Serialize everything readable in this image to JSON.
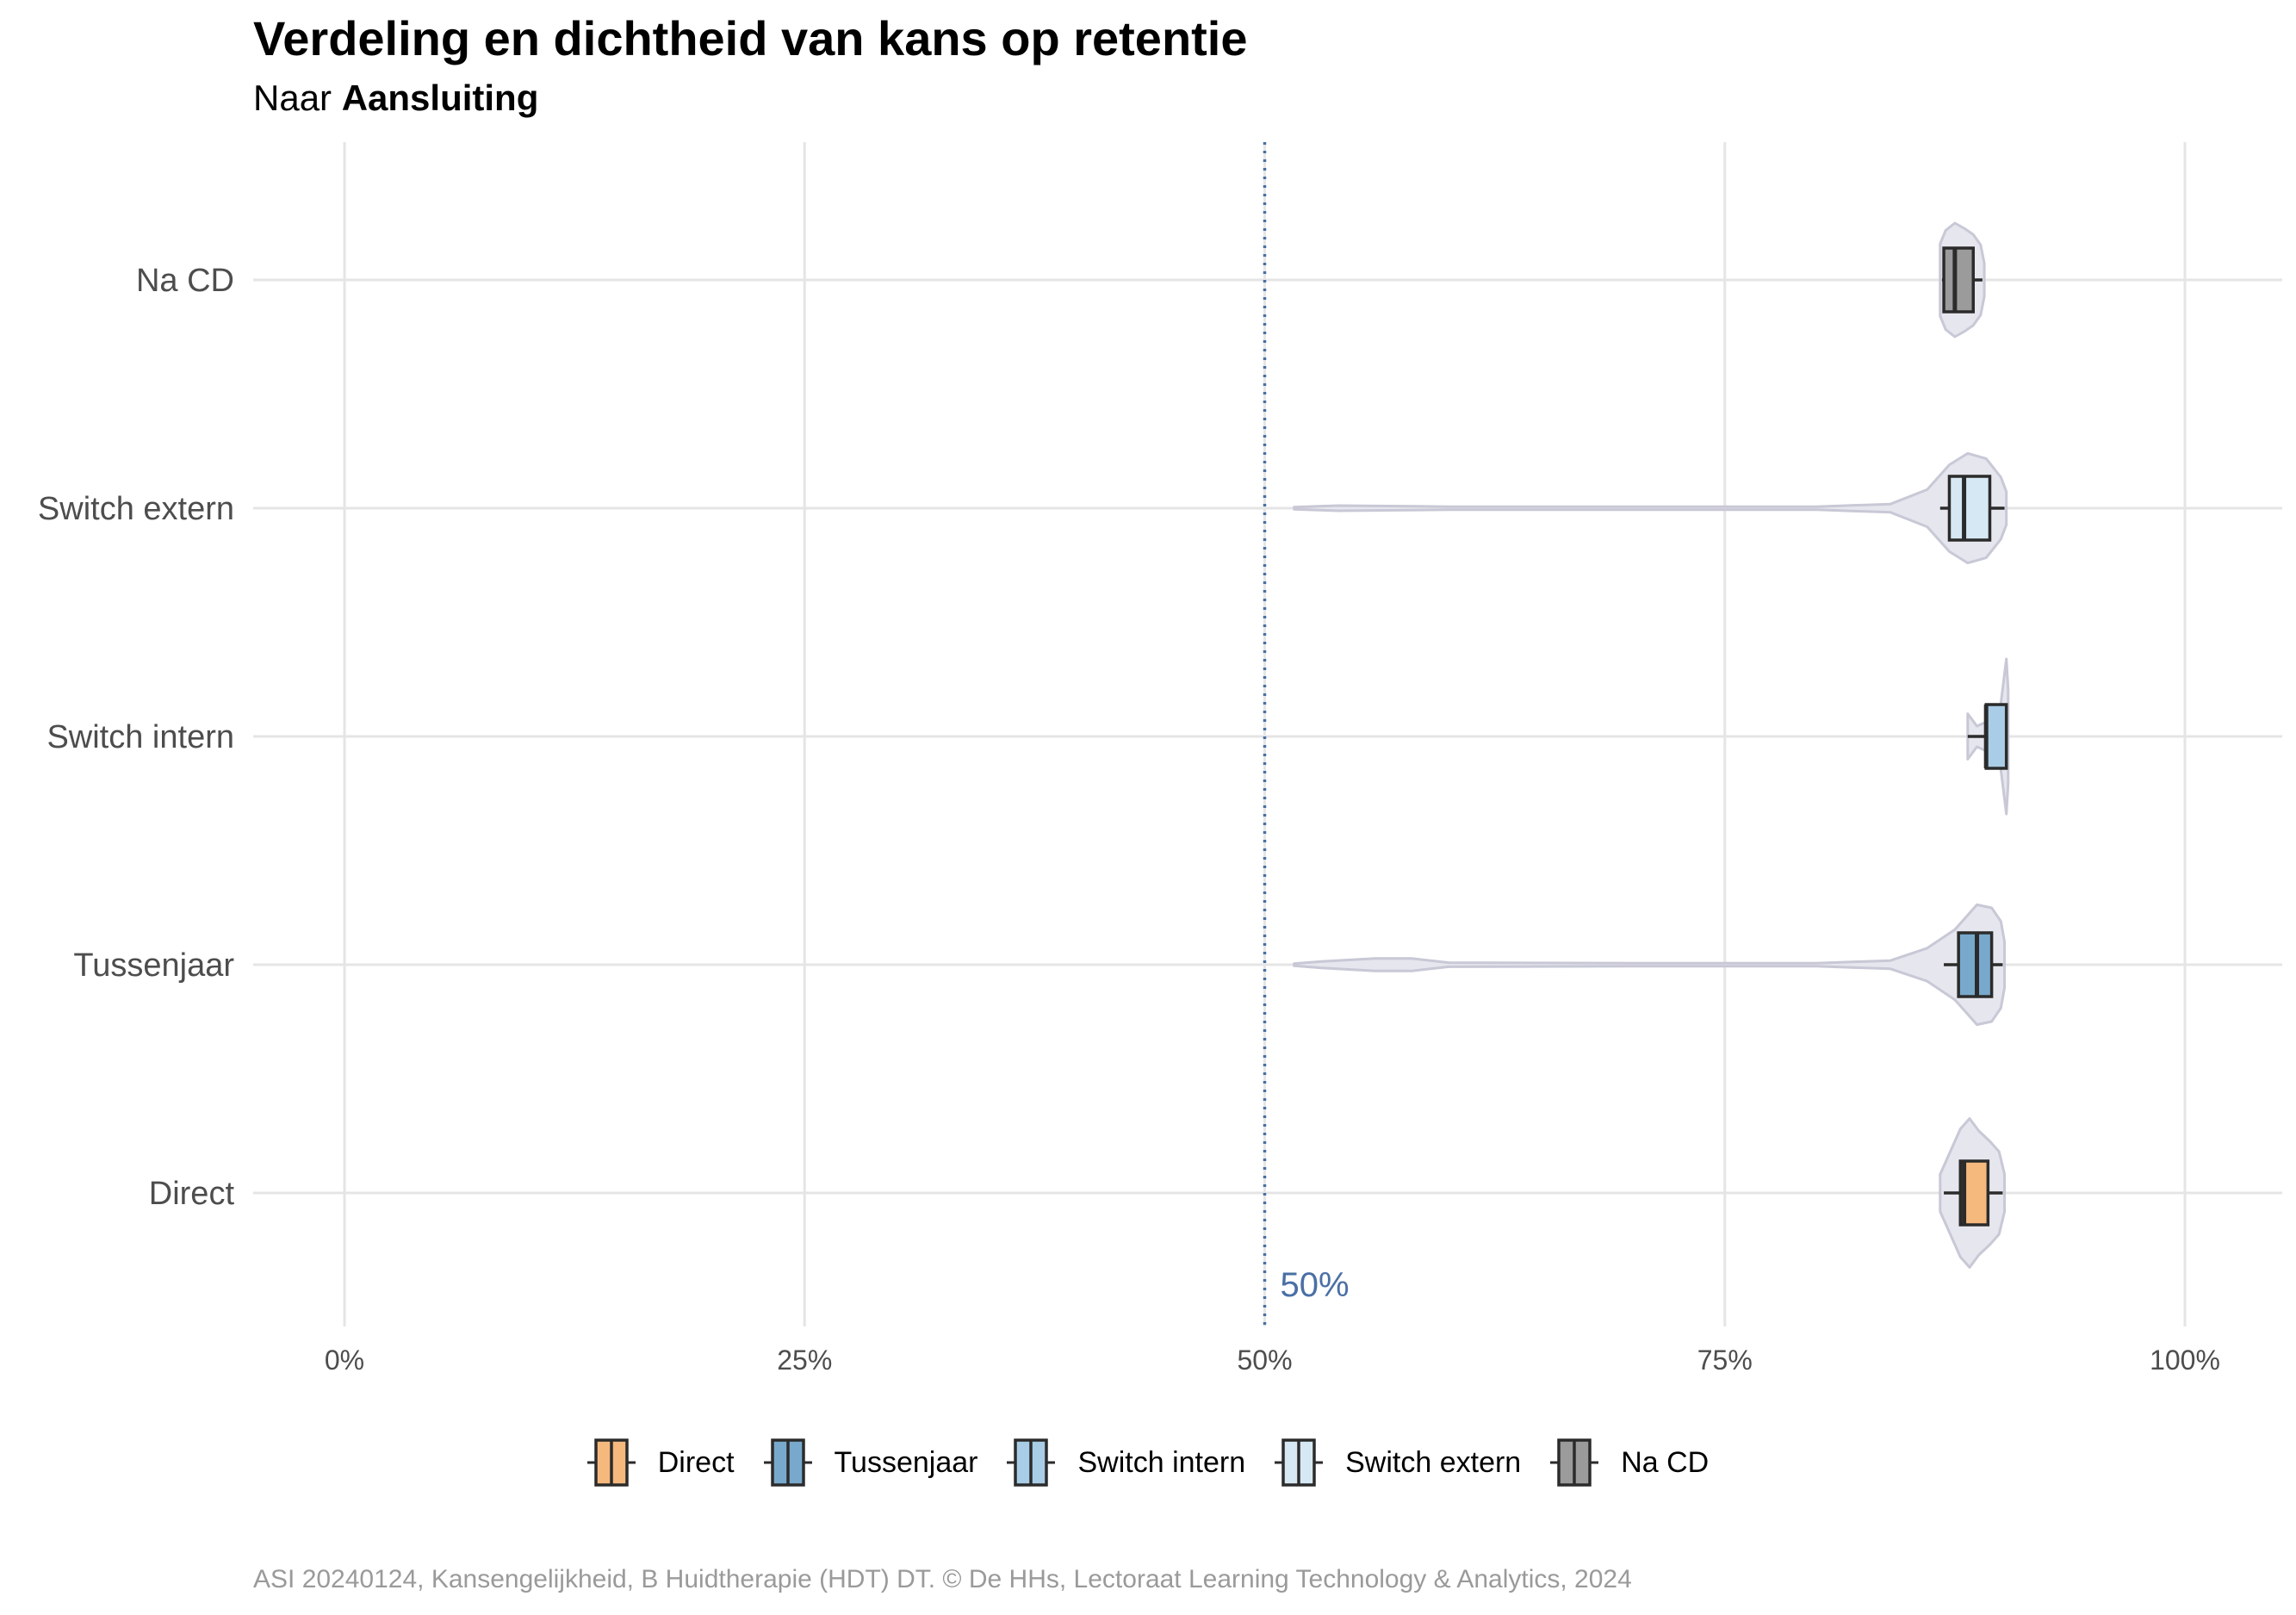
{
  "title": "Verdeling en dichtheid van kans op retentie",
  "subtitle_prefix": "Naar ",
  "subtitle_bold": "Aansluiting",
  "caption": "ASI 20240124, Kansengelijkheid, B Huidtherapie (HDT) DT. © De HHs, Lectoraat Learning Technology & Analytics, 2024",
  "colors": {
    "Direct": "#f5b97e",
    "Tussenjaar": "#78a9cc",
    "Switch intern": "#a9cde6",
    "Switch extern": "#d6e8f3",
    "Na CD": "#9b9b9b",
    "violin_fill": "#e6e6ee",
    "violin_stroke": "#c8c8d6",
    "grid": "#e5e5e5",
    "reference_line": "#4a6fa5"
  },
  "chart_data": {
    "type": "violin-boxplot",
    "title": "Verdeling en dichtheid van kans op retentie",
    "subtitle": "Naar Aansluiting",
    "x_axis": {
      "label": "",
      "lim": [
        0,
        1
      ],
      "ticks": [
        0,
        0.25,
        0.5,
        0.75,
        1.0
      ],
      "tick_labels": [
        "0%",
        "25%",
        "50%",
        "75%",
        "100%"
      ]
    },
    "y_axis": {
      "label": "",
      "categories": [
        "Direct",
        "Tussenjaar",
        "Switch intern",
        "Switch extern",
        "Na CD"
      ]
    },
    "reference_line": {
      "x": 0.5,
      "label": "50%",
      "style": "dotted"
    },
    "grid": true,
    "legend_position": "bottom",
    "series": [
      {
        "name": "Direct",
        "box": {
          "whisker_low": 0.869,
          "q1": 0.878,
          "median": 0.88,
          "q3": 0.893,
          "whisker_high": 0.901
        },
        "violin": {
          "min": 0.867,
          "max": 0.902,
          "profile": [
            [
              0.867,
              0.18
            ],
            [
              0.872,
              0.38
            ],
            [
              0.878,
              0.62
            ],
            [
              0.883,
              0.72
            ],
            [
              0.888,
              0.6
            ],
            [
              0.894,
              0.5
            ],
            [
              0.899,
              0.4
            ],
            [
              0.902,
              0.18
            ]
          ]
        }
      },
      {
        "name": "Tussenjaar",
        "box": {
          "whisker_low": 0.869,
          "q1": 0.877,
          "median": 0.887,
          "q3": 0.895,
          "whisker_high": 0.901
        },
        "violin": {
          "min": 0.516,
          "max": 0.902,
          "profile": [
            [
              0.516,
              0.01
            ],
            [
              0.53,
              0.03
            ],
            [
              0.56,
              0.06
            ],
            [
              0.58,
              0.06
            ],
            [
              0.6,
              0.02
            ],
            [
              0.7,
              0.015
            ],
            [
              0.8,
              0.015
            ],
            [
              0.84,
              0.04
            ],
            [
              0.86,
              0.16
            ],
            [
              0.875,
              0.34
            ],
            [
              0.887,
              0.58
            ],
            [
              0.895,
              0.55
            ],
            [
              0.9,
              0.42
            ],
            [
              0.902,
              0.22
            ]
          ]
        }
      },
      {
        "name": "Switch intern",
        "box": {
          "whisker_low": 0.882,
          "q1": 0.892,
          "median": 0.892,
          "q3": 0.903,
          "whisker_high": 0.903
        },
        "violin": {
          "min": 0.882,
          "max": 0.904,
          "profile": [
            [
              0.882,
              0.22
            ],
            [
              0.887,
              0.1
            ],
            [
              0.892,
              0.14
            ],
            [
              0.897,
              0.22
            ],
            [
              0.9,
              0.32
            ],
            [
              0.903,
              0.75
            ],
            [
              0.904,
              0.45
            ]
          ]
        }
      },
      {
        "name": "Switch extern",
        "box": {
          "whisker_low": 0.867,
          "q1": 0.872,
          "median": 0.88,
          "q3": 0.894,
          "whisker_high": 0.902
        },
        "violin": {
          "min": 0.516,
          "max": 0.903,
          "profile": [
            [
              0.516,
              0.01
            ],
            [
              0.54,
              0.025
            ],
            [
              0.6,
              0.015
            ],
            [
              0.7,
              0.015
            ],
            [
              0.8,
              0.015
            ],
            [
              0.84,
              0.04
            ],
            [
              0.86,
              0.18
            ],
            [
              0.872,
              0.42
            ],
            [
              0.882,
              0.53
            ],
            [
              0.892,
              0.48
            ],
            [
              0.9,
              0.3
            ],
            [
              0.903,
              0.16
            ]
          ]
        }
      },
      {
        "name": "Na CD",
        "box": {
          "whisker_low": 0.868,
          "q1": 0.869,
          "median": 0.875,
          "q3": 0.885,
          "whisker_high": 0.89
        },
        "violin": {
          "min": 0.867,
          "max": 0.891,
          "profile": [
            [
              0.867,
              0.35
            ],
            [
              0.87,
              0.48
            ],
            [
              0.875,
              0.55
            ],
            [
              0.88,
              0.5
            ],
            [
              0.885,
              0.44
            ],
            [
              0.889,
              0.34
            ],
            [
              0.891,
              0.16
            ]
          ]
        }
      }
    ]
  }
}
